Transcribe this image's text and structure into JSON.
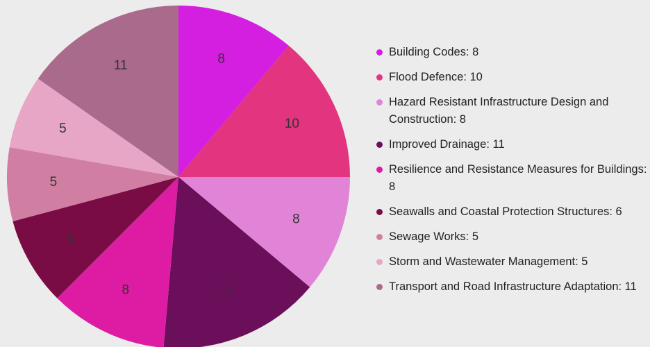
{
  "chart_data": {
    "type": "pie",
    "categories": [
      "Building Codes: 8",
      "Flood Defence: 10",
      "Hazard Resistant Infrastructure Design and Construction: 8",
      "Improved Drainage: 11",
      "Resilience and Resistance Measures for Buildings: 8",
      "Seawalls and Coastal Protection Structures: 6",
      "Sewage Works: 5",
      "Storm and Wastewater Management: 5",
      "Transport and Road Infrastructure Adaptation: 11"
    ],
    "values": [
      8,
      10,
      8,
      11,
      8,
      6,
      5,
      5,
      11
    ],
    "colors": [
      "#d41ee0",
      "#e2347f",
      "#e184d8",
      "#6c0f5b",
      "#dd1ca3",
      "#7a0c45",
      "#d07fa2",
      "#e8a6c6",
      "#a96a8b"
    ],
    "legend": "right"
  }
}
